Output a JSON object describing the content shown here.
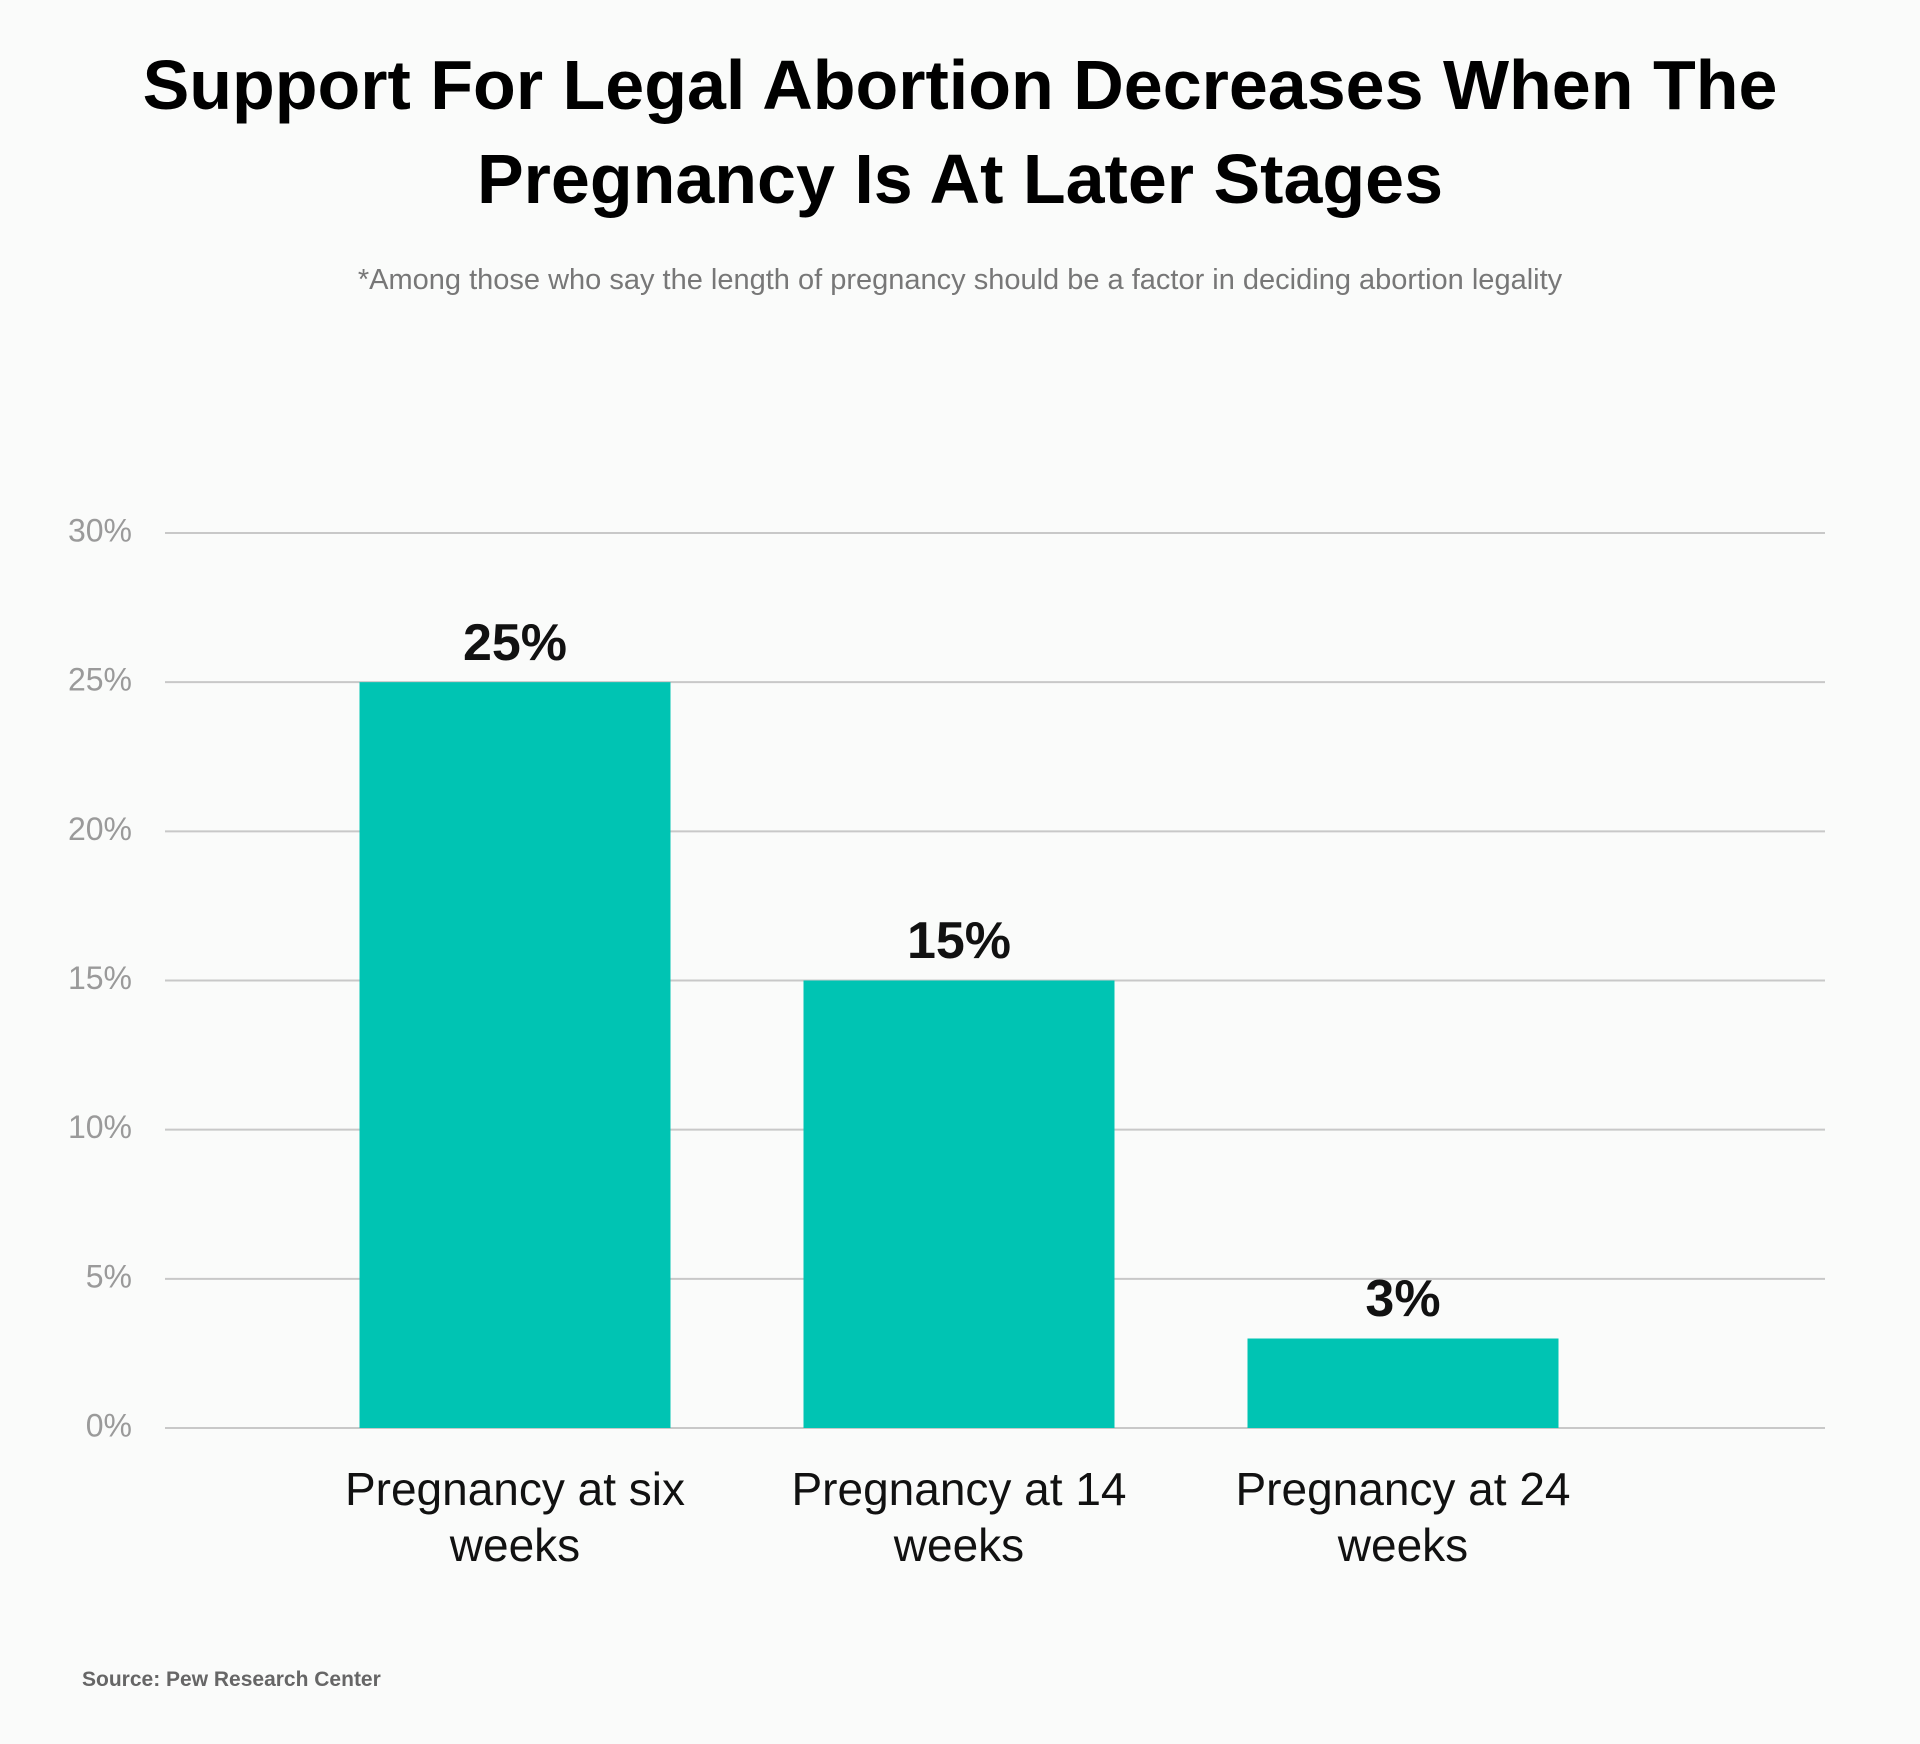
{
  "chart_data": {
    "type": "bar",
    "title": "Support For Legal Abortion Decreases When The Pregnancy Is At Later Stages",
    "subtitle": "*Among those who say the length of pregnancy should be a factor in deciding abortion legality",
    "categories": [
      "Pregnancy at six weeks",
      "Pregnancy at 14 weeks",
      "Pregnancy at 24 weeks"
    ],
    "values": [
      25,
      15,
      3
    ],
    "value_labels": [
      "25%",
      "15%",
      "3%"
    ],
    "color": "#00c4b3",
    "ylim": [
      0,
      30
    ],
    "yticks": [
      {
        "value": 0,
        "label": "0%"
      },
      {
        "value": 5,
        "label": "5%"
      },
      {
        "value": 10,
        "label": "10%"
      },
      {
        "value": 15,
        "label": "15%"
      },
      {
        "value": 20,
        "label": "20%"
      },
      {
        "value": 25,
        "label": "25%"
      },
      {
        "value": 30,
        "label": "30%"
      }
    ],
    "grid": true,
    "source": "Source: Pew Research Center"
  }
}
